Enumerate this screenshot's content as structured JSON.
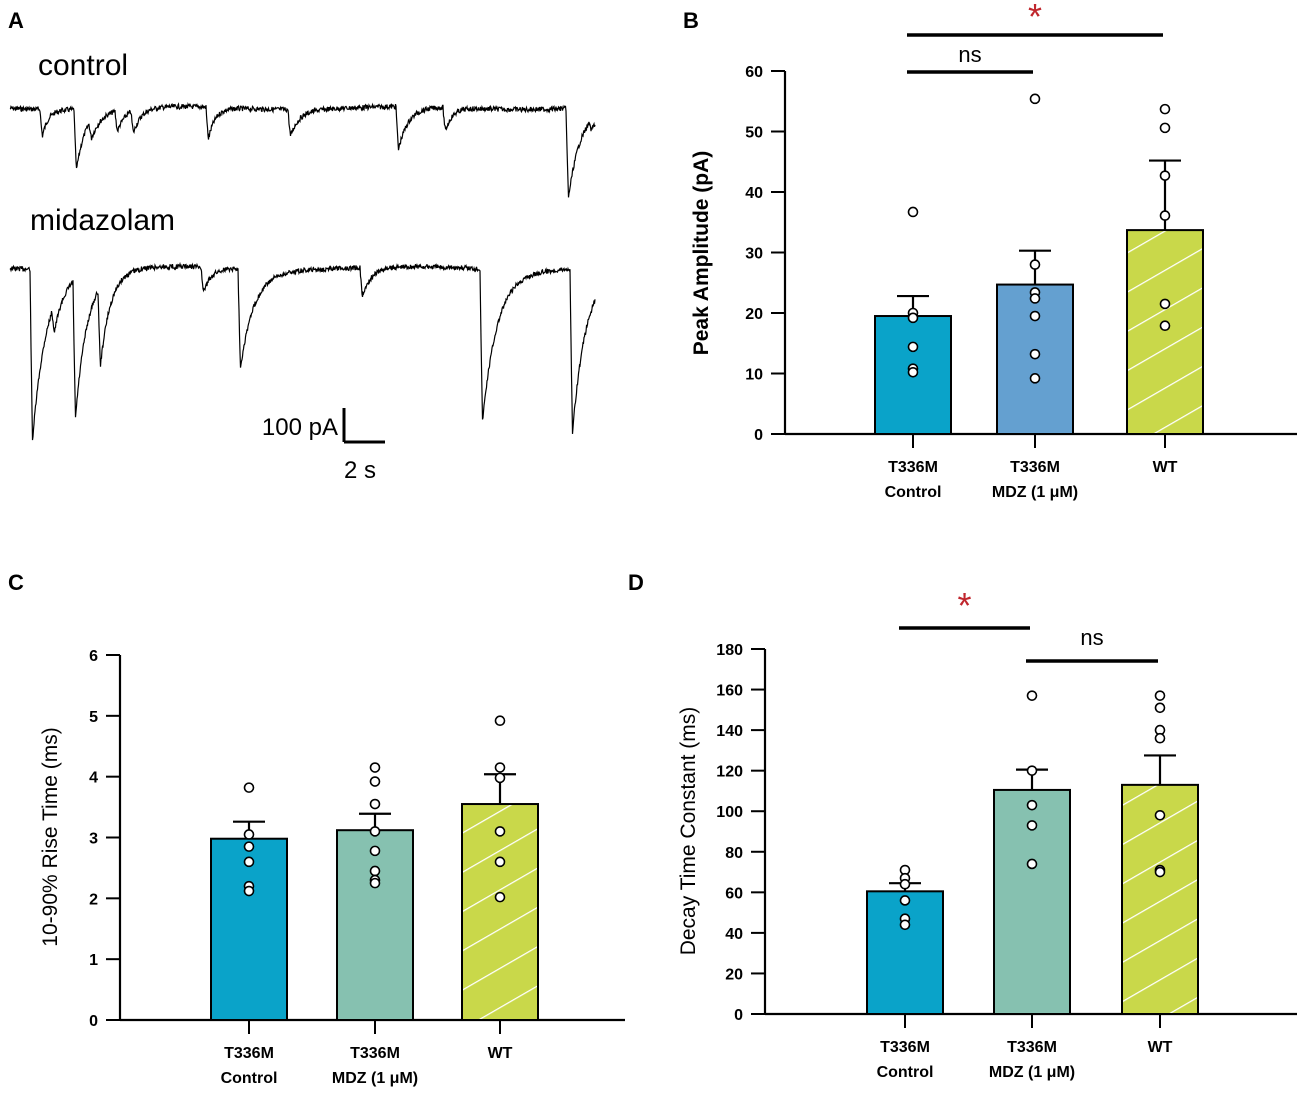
{
  "colors": {
    "t336m_control": "#0aa3c9",
    "t336m_mdz_B": "#64a0d0",
    "t336m_mdz_CD": "#86c1b0",
    "wt": "#c9d84a",
    "star": "#c0262d",
    "trace": "#000000"
  },
  "panel_a": {
    "letter": "A",
    "trace1_label": "control",
    "trace2_label": "midazolam",
    "scale_y_label": "100 pA",
    "scale_x_label": "2 s"
  },
  "chart_data": [
    {
      "panel": "B",
      "type": "bar",
      "ylabel": "Peak Amplitude (pA)",
      "ylabel_bold": true,
      "ylim": [
        0,
        60
      ],
      "yticks": [
        0,
        10,
        20,
        30,
        40,
        50,
        60
      ],
      "categories": [
        [
          "T336M",
          "Control"
        ],
        [
          "T336M",
          "MDZ (1 μM)"
        ],
        [
          "WT"
        ]
      ],
      "bar_colors": [
        "#0aa3c9",
        "#64a0d0",
        "#c9d84a"
      ],
      "hatched": [
        false,
        false,
        true
      ],
      "values": [
        19.5,
        24.7,
        33.7
      ],
      "errors": [
        3.3,
        5.6,
        11.5
      ],
      "points": [
        [
          36.7,
          20.0,
          19.2,
          14.4,
          10.8,
          10.2
        ],
        [
          55.4,
          28.0,
          23.4,
          22.4,
          19.5,
          13.2,
          9.2
        ],
        [
          53.7,
          50.6,
          42.7,
          36.1,
          21.5,
          17.9
        ]
      ],
      "significance": [
        {
          "from": 0,
          "to": 1,
          "label": "ns",
          "level": 0
        },
        {
          "from": 0,
          "to": 2,
          "label": "*",
          "level": 1
        }
      ]
    },
    {
      "panel": "C",
      "type": "bar",
      "ylabel": "10-90% Rise Time (ms)",
      "ylabel_bold": false,
      "ylim": [
        0,
        6
      ],
      "yticks": [
        0,
        1,
        2,
        3,
        4,
        5,
        6
      ],
      "categories": [
        [
          "T336M",
          "Control"
        ],
        [
          "T336M",
          "MDZ (1 μM)"
        ],
        [
          "WT"
        ]
      ],
      "bar_colors": [
        "#0aa3c9",
        "#86c1b0",
        "#c9d84a"
      ],
      "hatched": [
        false,
        false,
        true
      ],
      "values": [
        2.98,
        3.12,
        3.55
      ],
      "errors": [
        0.28,
        0.27,
        0.49
      ],
      "points": [
        [
          3.82,
          3.05,
          2.85,
          2.6,
          2.2,
          2.12
        ],
        [
          4.15,
          3.92,
          3.55,
          3.1,
          2.78,
          2.45,
          2.3,
          2.25
        ],
        [
          4.92,
          4.15,
          3.98,
          3.1,
          2.6,
          2.02
        ]
      ],
      "significance": []
    },
    {
      "panel": "D",
      "type": "bar",
      "ylabel": "Decay Time Constant (ms)",
      "ylabel_bold": false,
      "ylim": [
        0,
        180
      ],
      "yticks": [
        0,
        20,
        40,
        60,
        80,
        100,
        120,
        140,
        160,
        180
      ],
      "categories": [
        [
          "T336M",
          "Control"
        ],
        [
          "T336M",
          "MDZ (1 μM)"
        ],
        [
          "WT"
        ]
      ],
      "bar_colors": [
        "#0aa3c9",
        "#86c1b0",
        "#c9d84a"
      ],
      "hatched": [
        false,
        false,
        true
      ],
      "values": [
        60.5,
        110.5,
        113
      ],
      "errors": [
        4,
        10,
        14.5
      ],
      "points": [
        [
          71,
          67,
          64,
          56,
          47,
          44
        ],
        [
          157,
          120,
          103,
          93,
          74
        ],
        [
          157,
          151,
          140,
          136,
          98,
          71,
          70
        ]
      ],
      "significance": [
        {
          "from": 0,
          "to": 1,
          "label": "*",
          "level": 0
        },
        {
          "from": 1,
          "to": 2,
          "label": "ns",
          "level": 1
        }
      ]
    }
  ]
}
